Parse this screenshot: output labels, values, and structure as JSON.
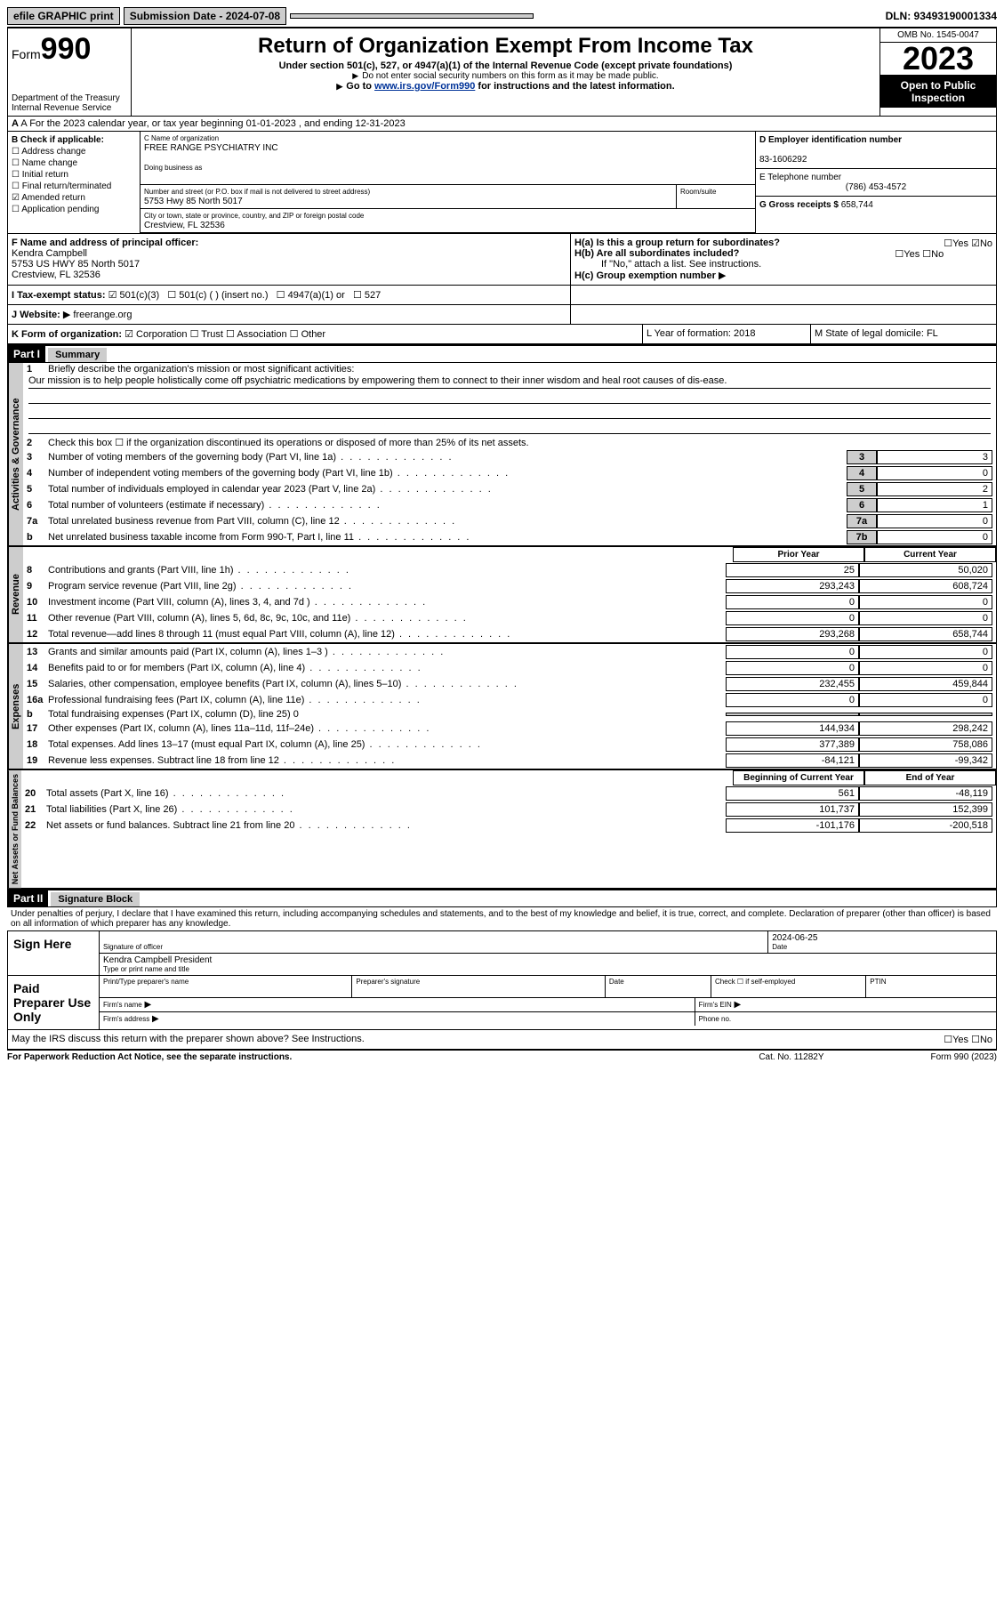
{
  "top": {
    "efile": "efile GRAPHIC print",
    "submission": "Submission Date - 2024-07-08",
    "dln": "DLN: 93493190001334"
  },
  "header": {
    "form_prefix": "Form",
    "form_num": "990",
    "dept": "Department of the Treasury",
    "irs": "Internal Revenue Service",
    "title": "Return of Organization Exempt From Income Tax",
    "sub1": "Under section 501(c), 527, or 4947(a)(1) of the Internal Revenue Code (except private foundations)",
    "sub2": "Do not enter social security numbers on this form as it may be made public.",
    "sub3_pre": "Go to ",
    "sub3_link": "www.irs.gov/Form990",
    "sub3_post": " for instructions and the latest information.",
    "omb": "OMB No. 1545-0047",
    "year": "2023",
    "open": "Open to Public Inspection"
  },
  "rowA": "A For the 2023 calendar year, or tax year beginning 01-01-2023   , and ending 12-31-2023",
  "secB": {
    "heading": "B Check if applicable:",
    "opts": [
      "Address change",
      "Name change",
      "Initial return",
      "Final return/terminated",
      "Amended return",
      "Application pending"
    ],
    "checked_idx": 4,
    "c_label": "C Name of organization",
    "c_name": "FREE RANGE PSYCHIATRY INC",
    "dba": "Doing business as",
    "addr_label": "Number and street (or P.O. box if mail is not delivered to street address)",
    "room": "Room/suite",
    "addr": "5753 Hwy 85 North 5017",
    "city_label": "City or town, state or province, country, and ZIP or foreign postal code",
    "city": "Crestview, FL  32536",
    "d_label": "D Employer identification number",
    "ein": "83-1606292",
    "e_label": "E Telephone number",
    "phone": "(786) 453-4572",
    "g_label": "G Gross receipts $",
    "g_val": "658,744",
    "f_label": "F Name and address of principal officer:",
    "f_name": "Kendra Campbell",
    "f_addr1": "5753 US HWY 85 North 5017",
    "f_addr2": "Crestview, FL  32536",
    "ha": "H(a)  Is this a group return for subordinates?",
    "hb": "H(b)  Are all subordinates included?",
    "hb_note": "If \"No,\" attach a list. See instructions.",
    "hc": "H(c)  Group exemption number",
    "yes": "Yes",
    "no": "No"
  },
  "rowI": {
    "label": "I   Tax-exempt status:",
    "o1": "501(c)(3)",
    "o2": "501(c) (  ) (insert no.)",
    "o3": "4947(a)(1) or",
    "o4": "527"
  },
  "rowJ": {
    "label": "J   Website:",
    "val": "freerange.org",
    "arrow": "▶"
  },
  "rowK": {
    "label": "K Form of organization:",
    "o1": "Corporation",
    "o2": "Trust",
    "o3": "Association",
    "o4": "Other",
    "l": "L Year of formation: 2018",
    "m": "M State of legal domicile: FL"
  },
  "part1": {
    "part": "Part I",
    "title": "Summary",
    "q1": "Briefly describe the organization's mission or most significant activities:",
    "mission": "Our mission is to help people holistically come off psychiatric medications by empowering them to connect to their inner wisdom and heal root causes of dis-ease.",
    "q2": "Check this box ☐ if the organization discontinued its operations or disposed of more than 25% of its net assets.",
    "lines_gov": [
      {
        "n": "3",
        "t": "Number of voting members of the governing body (Part VI, line 1a)",
        "b": "3",
        "v": "3"
      },
      {
        "n": "4",
        "t": "Number of independent voting members of the governing body (Part VI, line 1b)",
        "b": "4",
        "v": "0"
      },
      {
        "n": "5",
        "t": "Total number of individuals employed in calendar year 2023 (Part V, line 2a)",
        "b": "5",
        "v": "2"
      },
      {
        "n": "6",
        "t": "Total number of volunteers (estimate if necessary)",
        "b": "6",
        "v": "1"
      },
      {
        "n": "7a",
        "t": "Total unrelated business revenue from Part VIII, column (C), line 12",
        "b": "7a",
        "v": "0"
      },
      {
        "n": "b",
        "t": "Net unrelated business taxable income from Form 990-T, Part I, line 11",
        "b": "7b",
        "v": "0"
      }
    ],
    "prior": "Prior Year",
    "current": "Current Year",
    "rev": [
      {
        "n": "8",
        "t": "Contributions and grants (Part VIII, line 1h)",
        "p": "25",
        "c": "50,020"
      },
      {
        "n": "9",
        "t": "Program service revenue (Part VIII, line 2g)",
        "p": "293,243",
        "c": "608,724"
      },
      {
        "n": "10",
        "t": "Investment income (Part VIII, column (A), lines 3, 4, and 7d )",
        "p": "0",
        "c": "0"
      },
      {
        "n": "11",
        "t": "Other revenue (Part VIII, column (A), lines 5, 6d, 8c, 9c, 10c, and 11e)",
        "p": "0",
        "c": "0"
      },
      {
        "n": "12",
        "t": "Total revenue—add lines 8 through 11 (must equal Part VIII, column (A), line 12)",
        "p": "293,268",
        "c": "658,744"
      }
    ],
    "exp": [
      {
        "n": "13",
        "t": "Grants and similar amounts paid (Part IX, column (A), lines 1–3 )",
        "p": "0",
        "c": "0"
      },
      {
        "n": "14",
        "t": "Benefits paid to or for members (Part IX, column (A), line 4)",
        "p": "0",
        "c": "0"
      },
      {
        "n": "15",
        "t": "Salaries, other compensation, employee benefits (Part IX, column (A), lines 5–10)",
        "p": "232,455",
        "c": "459,844"
      },
      {
        "n": "16a",
        "t": "Professional fundraising fees (Part IX, column (A), line 11e)",
        "p": "0",
        "c": "0"
      },
      {
        "n": "b",
        "t": "Total fundraising expenses (Part IX, column (D), line 25) 0",
        "shade": true
      },
      {
        "n": "17",
        "t": "Other expenses (Part IX, column (A), lines 11a–11d, 11f–24e)",
        "p": "144,934",
        "c": "298,242"
      },
      {
        "n": "18",
        "t": "Total expenses. Add lines 13–17 (must equal Part IX, column (A), line 25)",
        "p": "377,389",
        "c": "758,086"
      },
      {
        "n": "19",
        "t": "Revenue less expenses. Subtract line 18 from line 12",
        "p": "-84,121",
        "c": "-99,342"
      }
    ],
    "beg": "Beginning of Current Year",
    "end": "End of Year",
    "net": [
      {
        "n": "20",
        "t": "Total assets (Part X, line 16)",
        "p": "561",
        "c": "-48,119"
      },
      {
        "n": "21",
        "t": "Total liabilities (Part X, line 26)",
        "p": "101,737",
        "c": "152,399"
      },
      {
        "n": "22",
        "t": "Net assets or fund balances. Subtract line 21 from line 20",
        "p": "-101,176",
        "c": "-200,518"
      }
    ]
  },
  "labels": {
    "gov": "Activities & Governance",
    "rev": "Revenue",
    "exp": "Expenses",
    "net": "Net Assets or Fund Balances"
  },
  "part2": {
    "part": "Part II",
    "title": "Signature Block",
    "decl": "Under penalties of perjury, I declare that I have examined this return, including accompanying schedules and statements, and to the best of my knowledge and belief, it is true, correct, and complete. Declaration of preparer (other than officer) is based on all information of which preparer has any knowledge.",
    "sign": "Sign Here",
    "sig_officer": "Signature of officer",
    "date": "Date",
    "date_val": "2024-06-25",
    "name_title": "Kendra Campbell  President",
    "type_name": "Type or print name and title",
    "paid": "Paid Preparer Use Only",
    "prep_name": "Print/Type preparer's name",
    "prep_sig": "Preparer's signature",
    "check_self": "Check ☐ if self-employed",
    "ptin": "PTIN",
    "firm_name": "Firm's name",
    "firm_ein": "Firm's EIN",
    "firm_addr": "Firm's address",
    "phone": "Phone no.",
    "may": "May the IRS discuss this return with the preparer shown above? See Instructions."
  },
  "footer": {
    "pra": "For Paperwork Reduction Act Notice, see the separate instructions.",
    "cat": "Cat. No. 11282Y",
    "form": "Form 990 (2023)"
  }
}
